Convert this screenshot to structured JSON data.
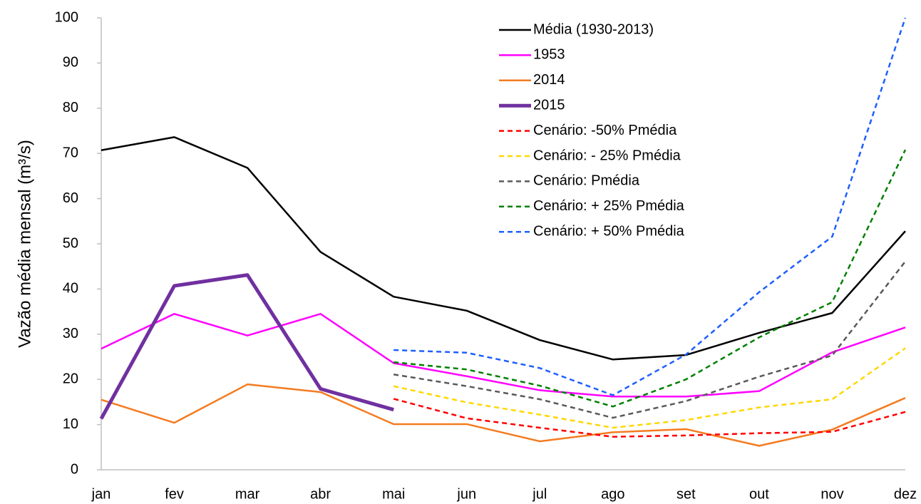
{
  "chart_data": {
    "type": "line",
    "y_label": "Vazão média mensal (m³/s)",
    "categories": [
      "jan",
      "fev",
      "mar",
      "abr",
      "mai",
      "jun",
      "jul",
      "ago",
      "set",
      "out",
      "nov",
      "dez"
    ],
    "ylim": [
      0,
      100
    ],
    "yticks": [
      0,
      10,
      20,
      30,
      40,
      50,
      60,
      70,
      80,
      90,
      100
    ],
    "grid": false,
    "legend": "top-right",
    "series": [
      {
        "name": "Média (1930-2013)",
        "color": "#000000",
        "width": 2.5,
        "dashed": false,
        "values": [
          70.7,
          73.6,
          66.8,
          48.2,
          38.3,
          35.2,
          28.7,
          24.4,
          25.4,
          30.3,
          34.7,
          52.8
        ]
      },
      {
        "name": "1953",
        "color": "#ff00ff",
        "width": 2.5,
        "dashed": false,
        "values": [
          26.8,
          34.5,
          29.7,
          34.5,
          23.6,
          20.7,
          17.6,
          16.2,
          16.2,
          17.4,
          26.0,
          31.5
        ]
      },
      {
        "name": "2014",
        "color": "#f47b20",
        "width": 2.5,
        "dashed": false,
        "values": [
          15.5,
          10.4,
          18.9,
          17.2,
          10.1,
          10.1,
          6.3,
          8.3,
          9.0,
          5.3,
          8.9,
          15.9
        ]
      },
      {
        "name": "2015",
        "color": "#7030a0",
        "width": 5,
        "dashed": false,
        "values": [
          11.3,
          40.7,
          43.1,
          17.9,
          13.3,
          null,
          null,
          null,
          null,
          null,
          null,
          null
        ]
      },
      {
        "name": "Cenário: -50% Pmédia",
        "color": "#ff0000",
        "width": 2.5,
        "dashed": true,
        "values": [
          null,
          null,
          null,
          null,
          15.7,
          11.4,
          9.3,
          7.3,
          7.6,
          8.1,
          8.4,
          12.8
        ]
      },
      {
        "name": "Cenário: - 25% Pmédia",
        "color": "#ffd700",
        "width": 2.5,
        "dashed": true,
        "values": [
          null,
          null,
          null,
          null,
          18.5,
          14.9,
          12.2,
          9.3,
          11.0,
          13.8,
          15.6,
          26.9
        ]
      },
      {
        "name": "Cenário: Pmédia",
        "color": "#5a5a5a",
        "width": 2.5,
        "dashed": true,
        "values": [
          null,
          null,
          null,
          null,
          21.1,
          18.5,
          15.6,
          11.5,
          15.2,
          20.6,
          25.3,
          46.1
        ]
      },
      {
        "name": "Cenário: + 25% Pmédia",
        "color": "#008000",
        "width": 2.5,
        "dashed": true,
        "values": [
          null,
          null,
          null,
          null,
          23.8,
          22.2,
          18.6,
          14.0,
          20.0,
          29.3,
          37.1,
          70.8
        ]
      },
      {
        "name": "Cenário: + 50% Pmédia",
        "color": "#1f5fff",
        "width": 2.5,
        "dashed": true,
        "values": [
          null,
          null,
          null,
          null,
          26.5,
          25.9,
          22.5,
          16.5,
          25.5,
          39.3,
          51.6,
          100
        ]
      }
    ]
  }
}
